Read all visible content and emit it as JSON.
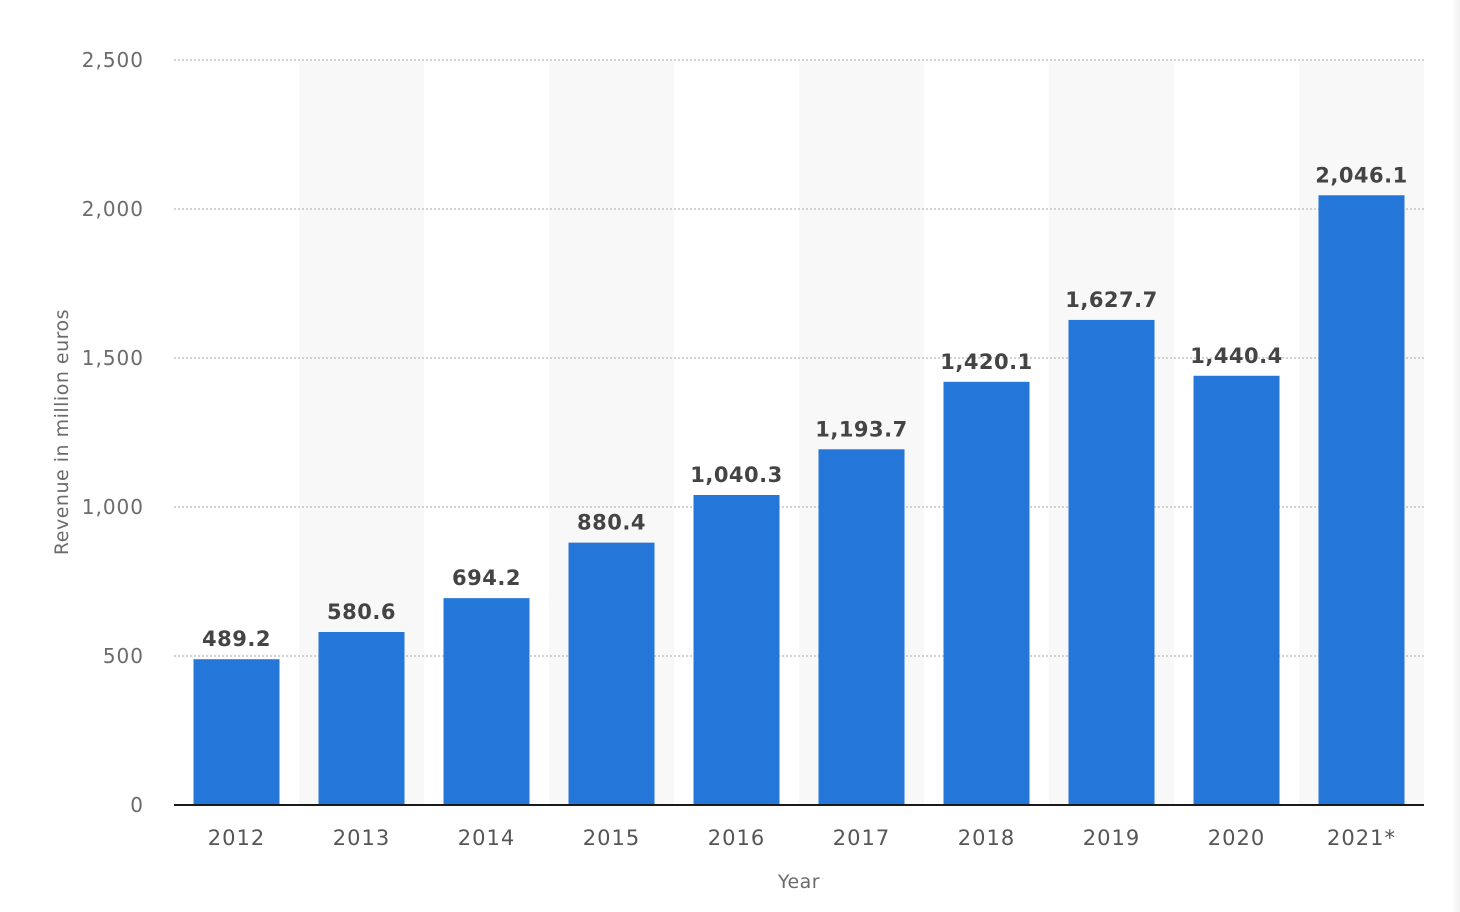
{
  "chart_data": {
    "type": "bar",
    "categories": [
      "2012",
      "2013",
      "2014",
      "2015",
      "2016",
      "2017",
      "2018",
      "2019",
      "2020",
      "2021*"
    ],
    "values": [
      489.2,
      580.6,
      694.2,
      880.4,
      1040.3,
      1193.7,
      1420.1,
      1627.7,
      1440.4,
      2046.1
    ],
    "data_labels": [
      "489.2",
      "580.6",
      "694.2",
      "880.4",
      "1,040.3",
      "1,193.7",
      "1,420.1",
      "1,627.7",
      "1,440.4",
      "2,046.1"
    ],
    "xlabel": "Year",
    "ylabel": "Revenue in million euros",
    "ylim": [
      0,
      2500
    ],
    "yticks": [
      0,
      500,
      1000,
      1500,
      2000,
      2500
    ],
    "ytick_labels": [
      "0",
      "500",
      "1,000",
      "1,500",
      "2,000",
      "2,500"
    ],
    "grid": true,
    "legend": "none",
    "bar_color": "#2576d9",
    "band_color": "#f8f8f8"
  }
}
